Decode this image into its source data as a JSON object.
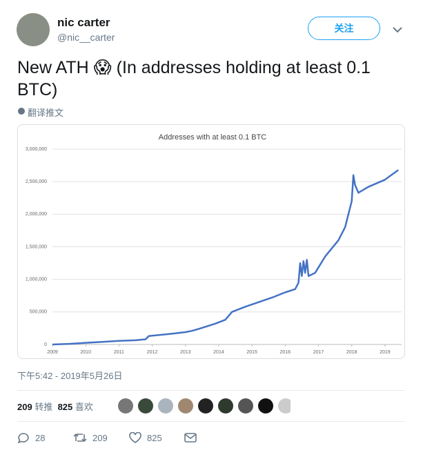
{
  "tweet": {
    "author_name": "nic carter",
    "handle": "@nic__carter",
    "follow_label": "关注",
    "text": "New ATH 😱 (In addresses holding at least 0.1 BTC)",
    "translate": "翻译推文",
    "timestamp": "下午5:42 - 2019年5月26日",
    "retweet_count": 209,
    "retweet_label": "转推",
    "like_count": 825,
    "like_label": "喜欢",
    "actions": {
      "replies": 28,
      "retweets": 209,
      "likes": 825
    }
  },
  "chart_data": {
    "type": "line",
    "title": "Addresses with at least 0.1 BTC",
    "series": [
      {
        "name": "Addresses",
        "color": "#4472c4",
        "x": [
          2009,
          2009.5,
          2010,
          2010.5,
          2011,
          2011.5,
          2011.8,
          2011.9,
          2012.5,
          2013,
          2013.2,
          2013.4,
          2013.9,
          2014.2,
          2014.4,
          2014.8,
          2015.2,
          2015.6,
          2016,
          2016.3,
          2016.4,
          2016.45,
          2016.5,
          2016.55,
          2016.6,
          2016.65,
          2016.7,
          2016.9,
          2017.2,
          2017.6,
          2017.8,
          2018,
          2018.05,
          2018.1,
          2018.2,
          2018.5,
          2019,
          2019.4
        ],
        "values": [
          0,
          10000,
          25000,
          40000,
          55000,
          65000,
          80000,
          130000,
          160000,
          190000,
          210000,
          240000,
          320000,
          380000,
          500000,
          580000,
          650000,
          720000,
          800000,
          850000,
          950000,
          1250000,
          1050000,
          1280000,
          1100000,
          1300000,
          1050000,
          1100000,
          1350000,
          1600000,
          1800000,
          2200000,
          2600000,
          2450000,
          2330000,
          2420000,
          2530000,
          2680000
        ]
      }
    ],
    "xlim": [
      2009,
      2019.5
    ],
    "xticks": [
      2009,
      2010,
      2011,
      2012,
      2013,
      2014,
      2015,
      2016,
      2017,
      2018,
      2019
    ],
    "ylim": [
      0,
      3000000
    ],
    "yticks": [
      0,
      {
        "value": 500000,
        "label": "500,000"
      },
      {
        "value": 1000000,
        "label": "1,000,000"
      },
      {
        "value": 1500000,
        "label": "1,500,000"
      },
      {
        "value": 2000000,
        "label": "2,000,000"
      },
      {
        "value": 2500000,
        "label": "2,500,000"
      },
      {
        "value": 3000000,
        "label": "3,000,000"
      }
    ],
    "grid": true
  }
}
